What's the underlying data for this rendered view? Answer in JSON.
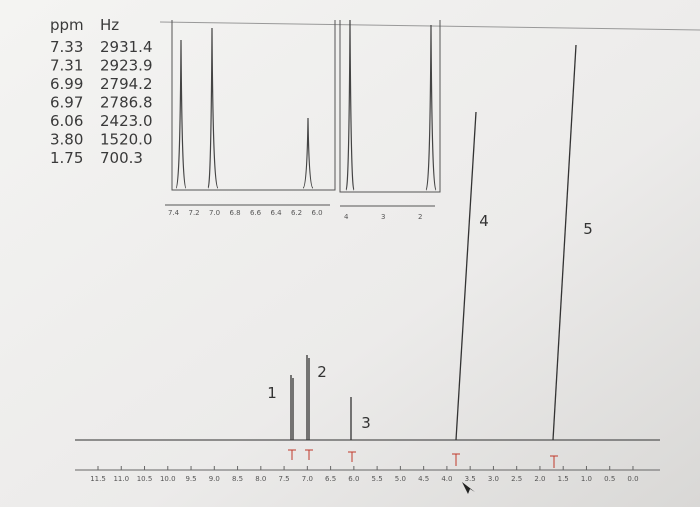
{
  "table": {
    "headers": [
      "ppm",
      "Hz"
    ],
    "rows": [
      [
        "7.33",
        "2931.4"
      ],
      [
        "7.31",
        "2923.9"
      ],
      [
        "6.99",
        "2794.2"
      ],
      [
        "6.97",
        "2786.8"
      ],
      [
        "6.06",
        "2423.0"
      ],
      [
        "3.80",
        "1520.0"
      ],
      [
        "1.75",
        "700.3"
      ]
    ]
  },
  "inset1_ticks": [
    "7.4",
    "7.2",
    "7.0",
    "6.8",
    "6.6",
    "6.4",
    "6.2",
    "6.0"
  ],
  "inset2_ticks": [
    "4",
    "3",
    "2"
  ],
  "main_ticks": [
    "11.5",
    "11.0",
    "10.5",
    "10.0",
    "9.5",
    "9.0",
    "8.5",
    "8.0",
    "7.5",
    "7.0",
    "6.5",
    "6.0",
    "5.5",
    "5.0",
    "4.5",
    "4.0",
    "3.5",
    "3.0",
    "2.5",
    "2.0",
    "1.5",
    "1.0",
    "0.5",
    "0.0"
  ],
  "peak_labels": [
    "1",
    "2",
    "3",
    "4",
    "5"
  ]
}
